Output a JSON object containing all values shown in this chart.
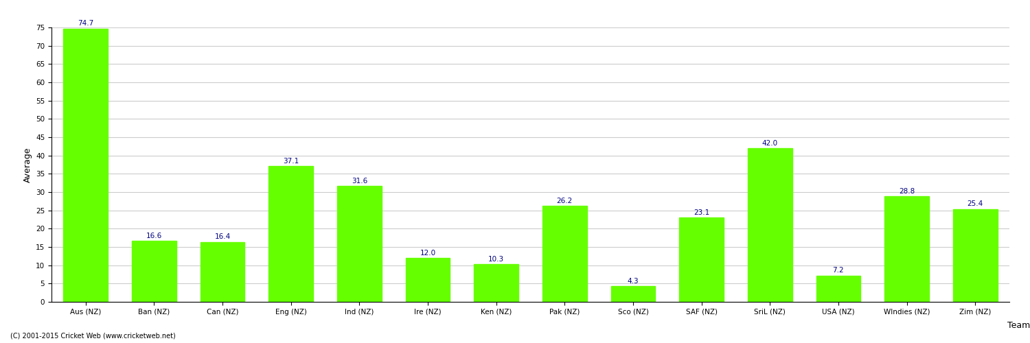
{
  "categories": [
    "Aus (NZ)",
    "Ban (NZ)",
    "Can (NZ)",
    "Eng (NZ)",
    "Ind (NZ)",
    "Ire (NZ)",
    "Ken (NZ)",
    "Pak (NZ)",
    "Sco (NZ)",
    "SAF (NZ)",
    "SriL (NZ)",
    "USA (NZ)",
    "WIndies (NZ)",
    "Zim (NZ)"
  ],
  "values": [
    74.7,
    16.6,
    16.4,
    37.1,
    31.6,
    12.0,
    10.3,
    26.2,
    4.3,
    23.1,
    42.0,
    7.2,
    28.8,
    25.4
  ],
  "bar_color": "#66ff00",
  "bar_edge_color": "#66ff00",
  "xlabel": "Team",
  "ylabel": "Average",
  "ylim": [
    0,
    75
  ],
  "yticks": [
    0,
    5,
    10,
    15,
    20,
    25,
    30,
    35,
    40,
    45,
    50,
    55,
    60,
    65,
    70,
    75
  ],
  "label_color": "#000080",
  "label_fontsize": 7.5,
  "grid_color": "#cccccc",
  "background_color": "#ffffff",
  "footer_text": "(C) 2001-2015 Cricket Web (www.cricketweb.net)",
  "axis_label_fontsize": 9,
  "tick_label_fontsize": 7.5,
  "xlabel_right": true
}
